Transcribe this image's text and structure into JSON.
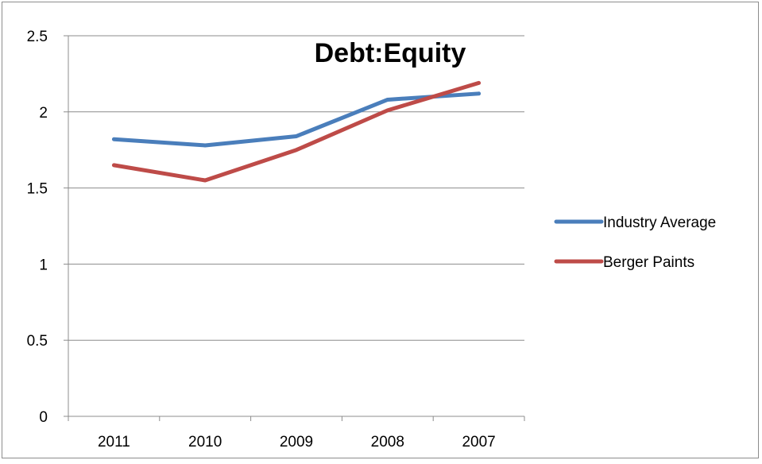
{
  "chart_data": {
    "type": "line",
    "title": "Debt:Equity",
    "xlabel": "",
    "ylabel": "",
    "categories": [
      "2011",
      "2010",
      "2009",
      "2008",
      "2007"
    ],
    "ylim": [
      0,
      2.5
    ],
    "yticks": [
      "0",
      "0.5",
      "1",
      "1.5",
      "2",
      "2.5"
    ],
    "grid": true,
    "legend_position": "right",
    "series": [
      {
        "name": "Industry Average",
        "color": "#4a7ebb",
        "values": [
          1.82,
          1.78,
          1.84,
          2.08,
          2.12
        ]
      },
      {
        "name": "Berger Paints",
        "color": "#be4b48",
        "values": [
          1.65,
          1.55,
          1.75,
          2.01,
          2.19
        ]
      }
    ]
  }
}
